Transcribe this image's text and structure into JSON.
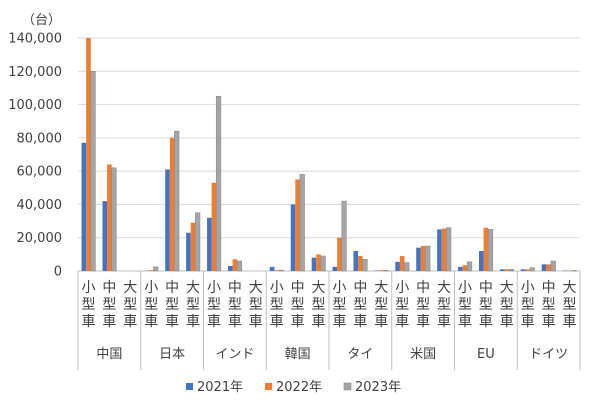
{
  "chart_data": {
    "type": "bar",
    "unit_label": "（台）",
    "y_ticks": [
      "0",
      "20,000",
      "40,000",
      "60,000",
      "80,000",
      "100,000",
      "120,000",
      "140,000"
    ],
    "ylim": [
      0,
      140000
    ],
    "grid": true,
    "legend_position": "bottom",
    "colors": [
      "#4472C4",
      "#ED7D31",
      "#A5A5A5"
    ],
    "size_labels": [
      "小型車",
      "中型車",
      "大型車"
    ],
    "groups": [
      "中国",
      "日本",
      "インド",
      "韓国",
      "タイ",
      "米国",
      "EU",
      "ドイツ"
    ],
    "series": [
      {
        "name": "2021年",
        "values": [
          77000,
          42000,
          0,
          200,
          61000,
          23000,
          32000,
          3000,
          0,
          2500,
          40000,
          8000,
          2500,
          12000,
          300,
          5500,
          14000,
          25000,
          2500,
          12000,
          1000,
          1000,
          4000,
          300
        ]
      },
      {
        "name": "2022年",
        "values": [
          140000,
          64000,
          0,
          500,
          80000,
          29000,
          53000,
          7000,
          0,
          500,
          55000,
          10000,
          20000,
          9000,
          500,
          9000,
          15000,
          25500,
          3500,
          26000,
          1000,
          1000,
          4000,
          300
        ]
      },
      {
        "name": "2023年",
        "values": [
          120000,
          62000,
          0,
          2500,
          84000,
          35000,
          105000,
          6000,
          0,
          500,
          58000,
          9000,
          42000,
          7000,
          500,
          5000,
          15000,
          26000,
          5500,
          25000,
          1000,
          2000,
          6000,
          300
        ]
      }
    ]
  }
}
